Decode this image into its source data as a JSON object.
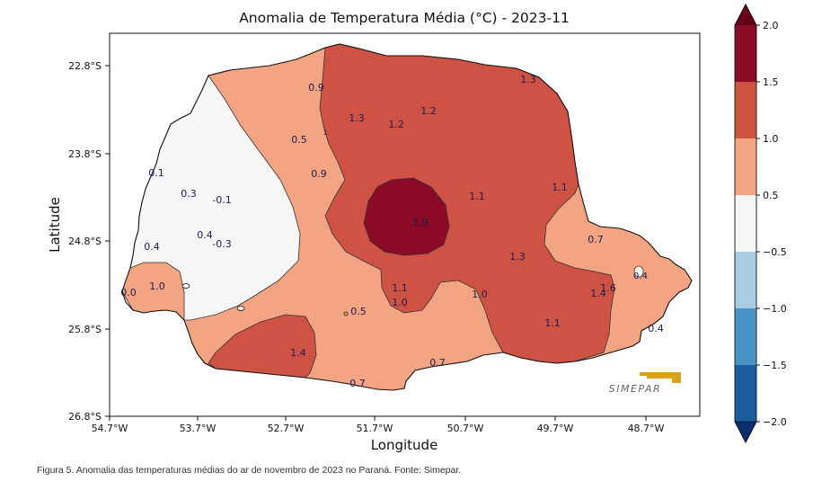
{
  "title": "Anomalia de Temperatura Média (°C) - 2023-11",
  "axes": {
    "xlabel": "Longitude",
    "ylabel": "Latitude",
    "xticks": [
      "54.7°W",
      "53.7°W",
      "52.7°W",
      "51.7°W",
      "50.7°W",
      "49.7°W",
      "48.7°W"
    ],
    "yticks": [
      "22.8°S",
      "23.8°S",
      "24.8°S",
      "25.8°S",
      "26.8°S"
    ]
  },
  "colorbar": {
    "ticks": [
      "2.0",
      "1.5",
      "1.0",
      "0.5",
      "−0.5",
      "−1.0",
      "−1.5",
      "−2.0"
    ],
    "colors": {
      "b_15_20": "#8b0a25",
      "b_10_15": "#cf5345",
      "b_05_10": "#f2a483",
      "b_n05_05": "#f6f6f6",
      "b_n10_n05": "#a8cde3",
      "b_n15_n10": "#4a93c4",
      "b_n20_n15": "#1a5c9c",
      "extend_low": "#0b2f6e"
    }
  },
  "labels": {
    "l1": "1.3",
    "l2": "0.9",
    "l3": "1.3",
    "l4": "1.2",
    "l5": "1.2",
    "l6": "0.5",
    "l7": "0.9",
    "l8": "0.1",
    "l9": "0.3",
    "l10": "-0.1",
    "l11": "1.1",
    "l12": "1.1",
    "l13": "1.9",
    "l14": "0.4",
    "l15": "-0.3",
    "l16": "0.7",
    "l17": "1.3",
    "l18": "0.4",
    "l19": "0.0",
    "l20": "1.0",
    "l21": "1.1",
    "l22": "1.0",
    "l23": "1.0",
    "l24": "1.6",
    "l25": "1.4",
    "l26": "0.5",
    "l27": "1.1",
    "l28": "0.4",
    "l29": "1.4",
    "l30": "0.7",
    "l31": "0.7",
    "l32": "1"
  },
  "logo": "SIMEPAR",
  "caption": "Figura 5. Anomalia das temperaturas médias do ar de novembro de 2023 no Paraná. Fonte: Simepar."
}
